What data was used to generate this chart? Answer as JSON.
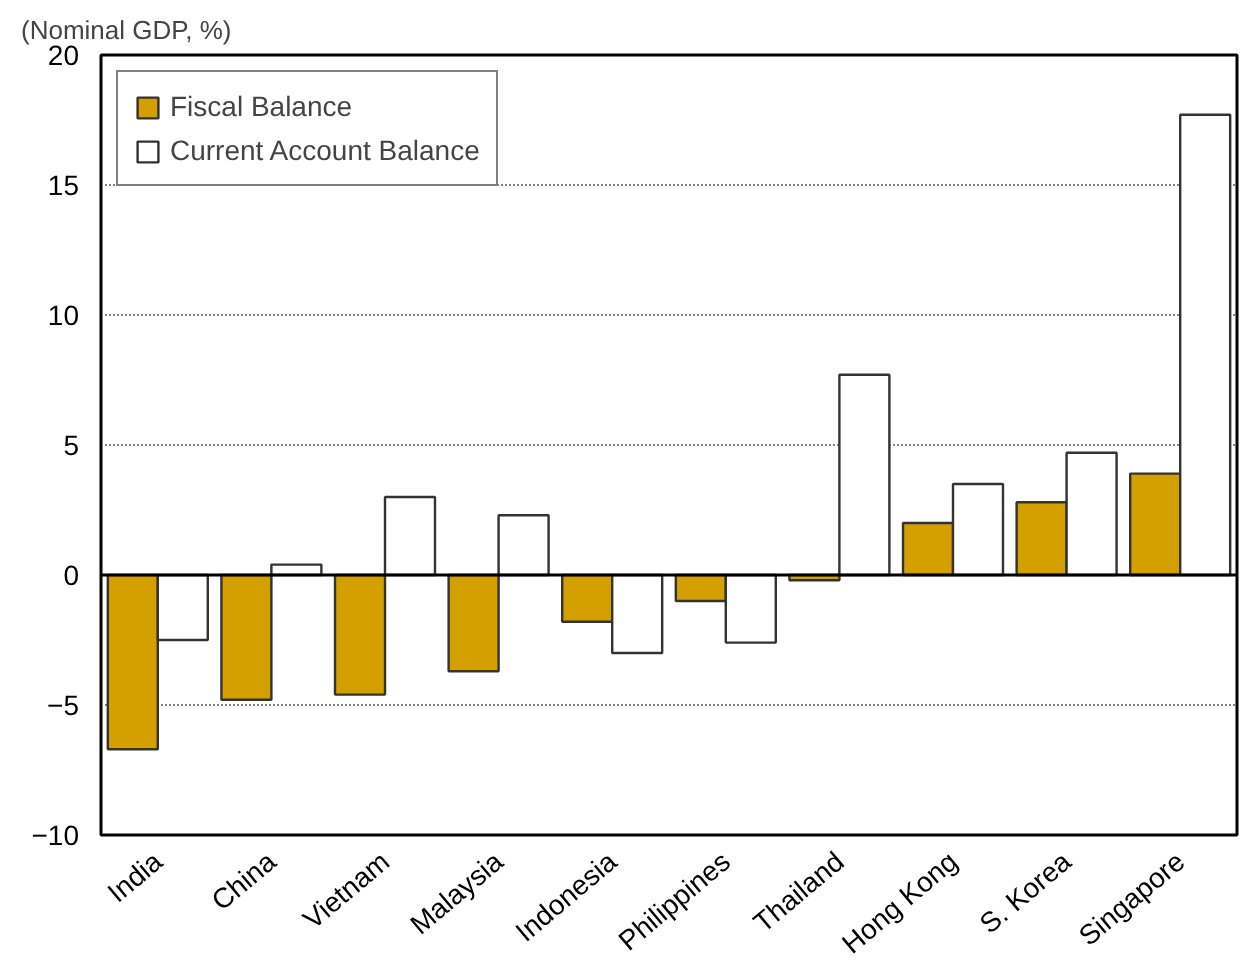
{
  "chart_data": {
    "type": "bar",
    "title": "(Nominal GDP, %)",
    "categories": [
      "India",
      "China",
      "Vietnam",
      "Malaysia",
      "Indonesia",
      "Philippines",
      "Thailand",
      "Hong Kong",
      "S. Korea",
      "Singapore"
    ],
    "series": [
      {
        "name": "Fiscal Balance",
        "color": "#d4a000",
        "values": [
          -6.7,
          -4.8,
          -4.6,
          -3.7,
          -1.8,
          -1.0,
          -0.2,
          2.0,
          2.8,
          3.9
        ]
      },
      {
        "name": "Current Account Balance",
        "color": "#ffffff",
        "values": [
          -2.5,
          0.4,
          3.0,
          2.3,
          -3.0,
          -2.6,
          7.7,
          3.5,
          4.7,
          17.7
        ]
      }
    ],
    "ylim": [
      -10,
      20
    ],
    "yticks": [
      -10,
      -5,
      0,
      5,
      10,
      15,
      20
    ],
    "grid": "y",
    "legend": "top left",
    "ref_lines": [
      {
        "axis": "y",
        "value": 0,
        "color": "#000000"
      }
    ]
  }
}
